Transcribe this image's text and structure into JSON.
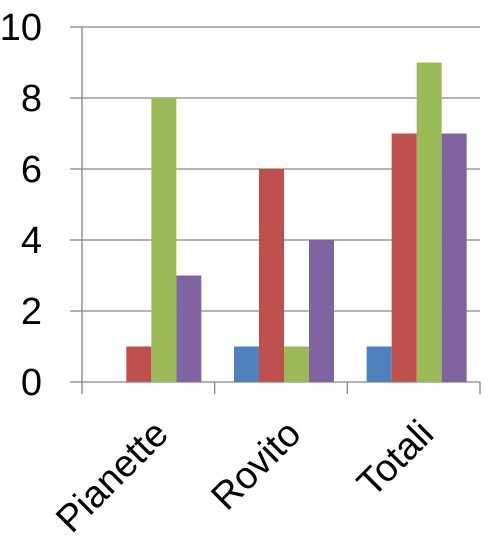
{
  "chart_data": {
    "type": "bar",
    "categories": [
      "Pianette",
      "Rovito",
      "Totali"
    ],
    "series": [
      {
        "values": [
          0,
          1,
          1
        ],
        "color": "#4F81BD"
      },
      {
        "values": [
          1,
          6,
          7
        ],
        "color": "#C0504D"
      },
      {
        "values": [
          8,
          1,
          9
        ],
        "color": "#9BBB59"
      },
      {
        "values": [
          3,
          4,
          7
        ],
        "color": "#8064A2"
      }
    ],
    "ylim": [
      0,
      10
    ],
    "yticks": [
      "0",
      "2",
      "4",
      "6",
      "8",
      "10"
    ],
    "grid": true,
    "legend": "none",
    "title": "",
    "xlabel": "",
    "ylabel": ""
  }
}
